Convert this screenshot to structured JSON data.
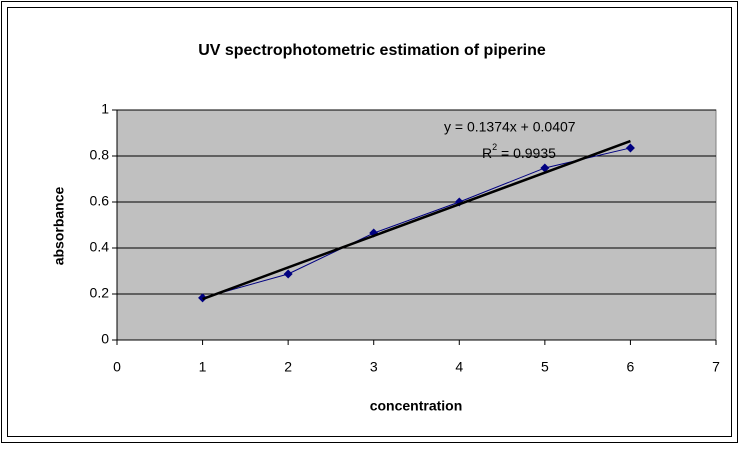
{
  "chart_data": {
    "type": "line",
    "title": "UV spectrophotometric estimation of piperine",
    "x_label": "concentration",
    "y_label": "absorbance",
    "x": [
      1,
      2,
      3,
      4,
      5,
      6
    ],
    "series": [
      {
        "color": "#000080",
        "values": [
          0.183,
          0.287,
          0.465,
          0.6,
          0.748,
          0.835
        ]
      }
    ],
    "xlim": [
      0,
      7
    ],
    "xticks": [
      0,
      1,
      2,
      3,
      4,
      5,
      6,
      7
    ],
    "ylim": [
      0,
      1
    ],
    "yticks": [
      0,
      0.2,
      0.4,
      0.6,
      0.8,
      1
    ],
    "grid": true,
    "plot_background": "#c0c0c0",
    "trendline": {
      "slope": 0.1374,
      "intercept": 0.0407,
      "color": "#000000",
      "equation": "y = 0.1374x + 0.0407",
      "r2_prefix": "R",
      "r2_sup": "2",
      "r2_text": " = 0.9935"
    }
  }
}
